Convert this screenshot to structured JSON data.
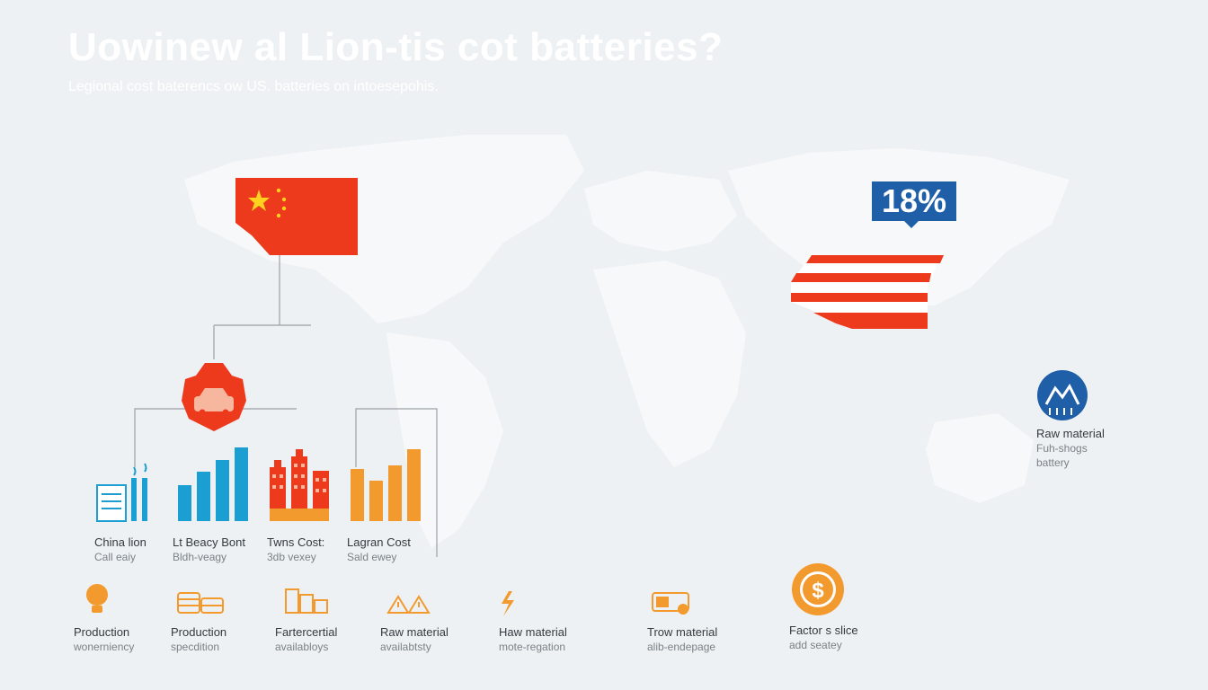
{
  "header": {
    "title": "Uowinew al Lion-tis cot batteries?",
    "subtitle": "Legional cost baterencs ow US. batteries on intoesepohis."
  },
  "badge": {
    "value": "18%"
  },
  "side_label": {
    "line1": "Raw material",
    "line2": "Fuh-shogs",
    "line3": "battery"
  },
  "chart_groups": [
    {
      "title": "China lion",
      "subtitle": "Call eaiy",
      "icon": "document-icon"
    },
    {
      "title": "Lt Beacy Bont",
      "subtitle": "Bldh-veagy",
      "values": [
        40,
        55,
        68,
        82
      ],
      "icon": "bar-chart-icon"
    },
    {
      "title": "Twns Cost:",
      "subtitle": "3db vexey",
      "icon": "buildings-icon"
    },
    {
      "title": "Lagran Cost",
      "subtitle": "Sald ewey",
      "values": [
        58,
        45,
        62,
        80
      ],
      "icon": "bar-chart-icon"
    }
  ],
  "factors": [
    {
      "title": "Production",
      "subtitle": "wonerniency",
      "icon": "lightbulb-icon"
    },
    {
      "title": "Production",
      "subtitle": "specdition",
      "icon": "coins-icon"
    },
    {
      "title": "Fartercertial",
      "subtitle": "availabloys",
      "icon": "coin-stack-icon"
    },
    {
      "title": "Raw material",
      "subtitle": "availabtsty",
      "icon": "warning-icon"
    },
    {
      "title": "Haw material",
      "subtitle": "mote-regation",
      "icon": "lightning-icon"
    },
    {
      "title": "Trow material",
      "subtitle": "alib-endepage",
      "icon": "battery-icon"
    },
    {
      "title": "Factor s slice",
      "subtitle": "add seatey",
      "icon": "dollar-gear-icon"
    }
  ],
  "colors": {
    "red": "#ee3a1c",
    "blue": "#1b9fd3",
    "orange": "#f29a2e",
    "navy": "#1f5fa8",
    "map": "#f6f7f8"
  }
}
